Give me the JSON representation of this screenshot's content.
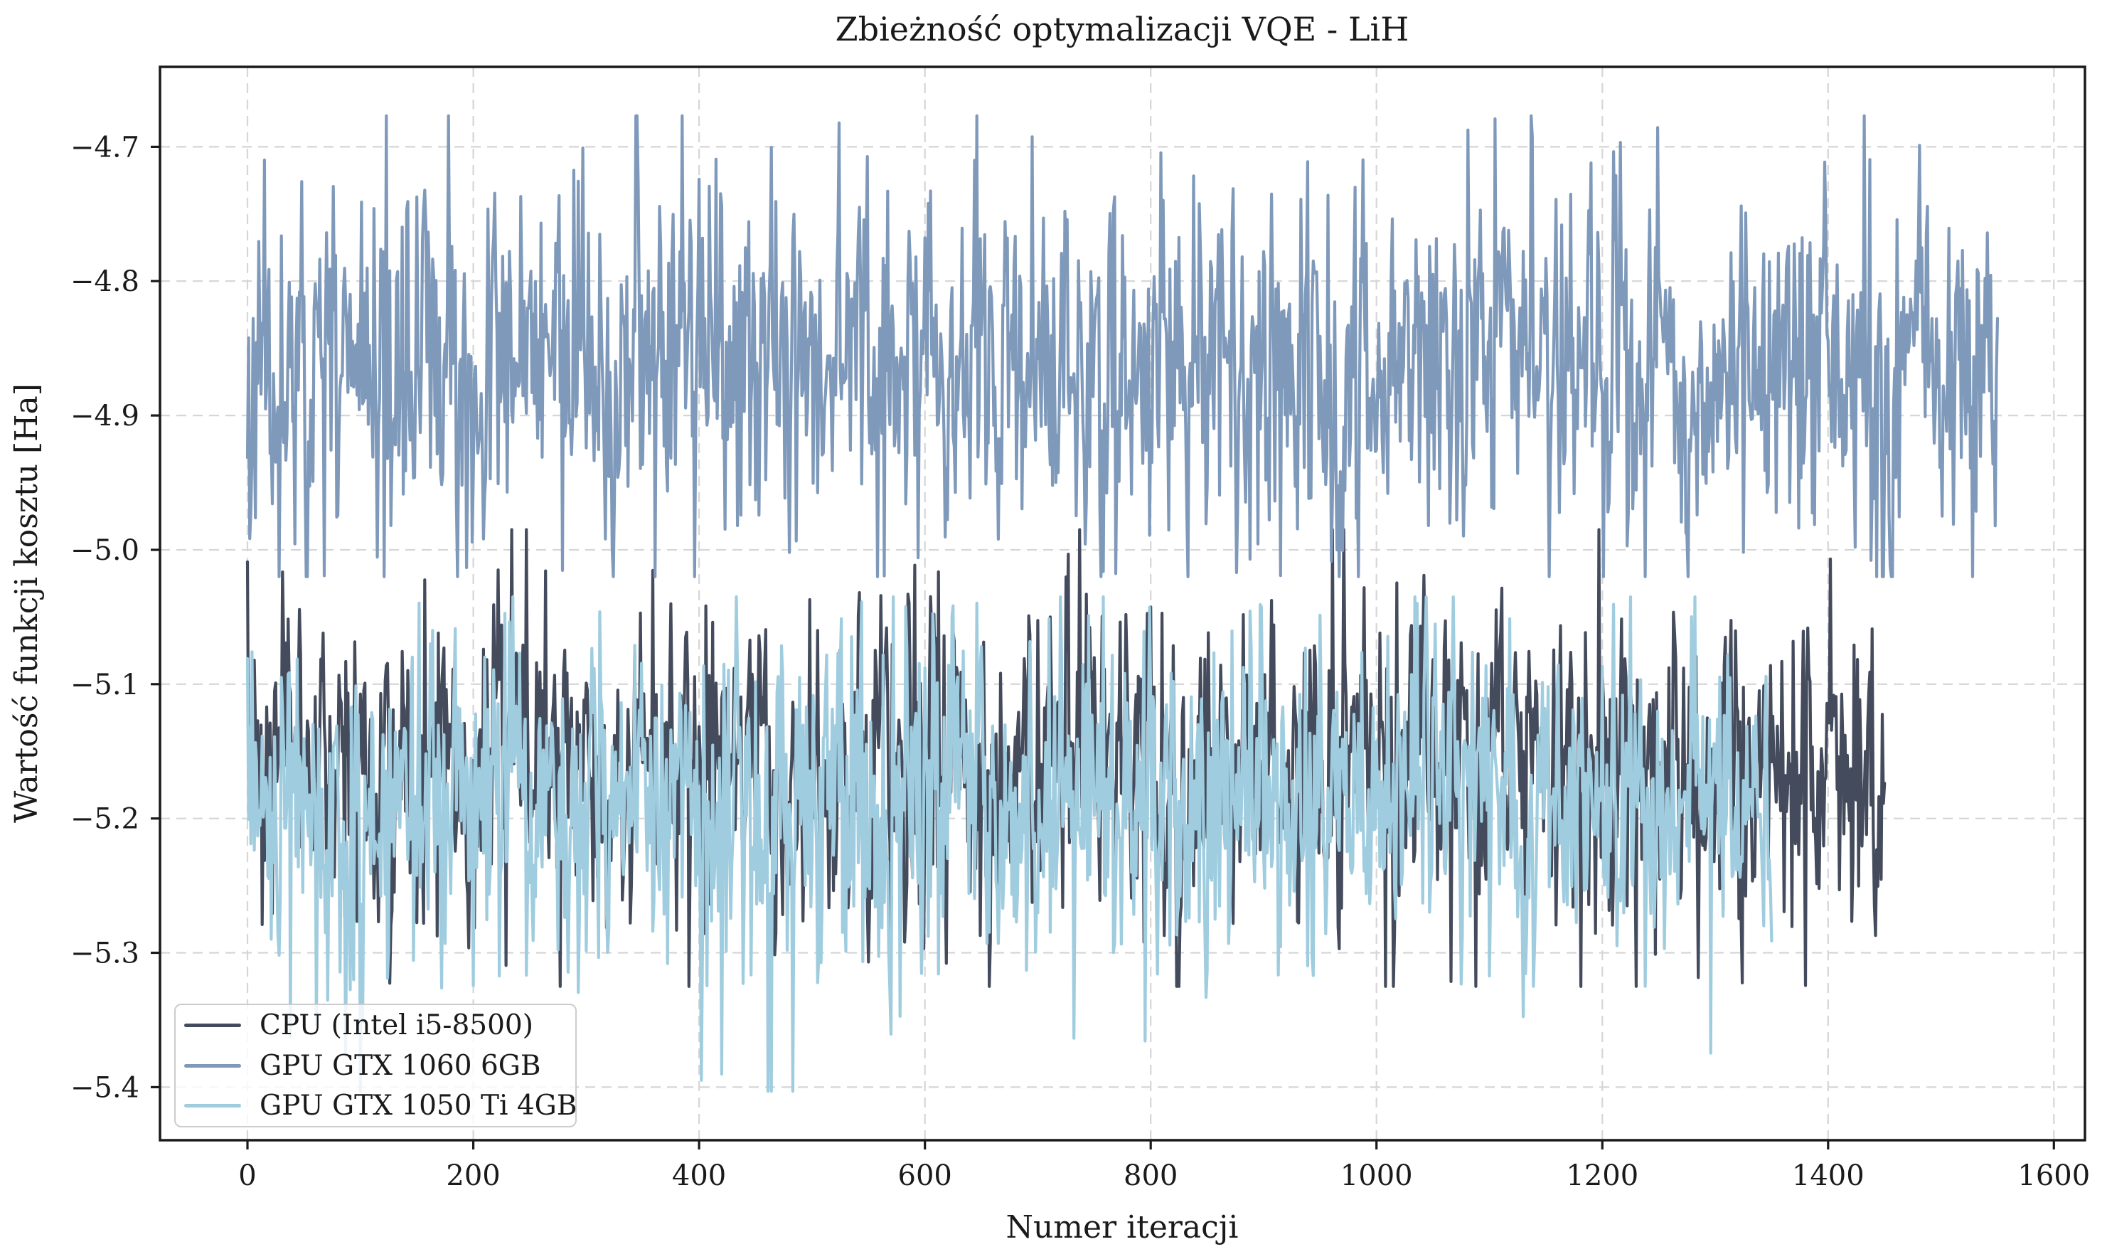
{
  "chart_data": {
    "type": "line",
    "title": "Zbieżność optymalizacji VQE - LiH",
    "xlabel": "Numer iteracji",
    "ylabel": "Wartość funkcji kosztu [Ha]",
    "xlim": [
      -77.5,
      1627.5
    ],
    "ylim": [
      -5.4395,
      -4.6405
    ],
    "xticks": [
      0,
      200,
      400,
      600,
      800,
      1000,
      1200,
      1400,
      1600
    ],
    "yticks": [
      -5.4,
      -5.3,
      -5.2,
      -5.1,
      -5.0,
      -4.9,
      -4.8,
      -4.7
    ],
    "grid": {
      "visible": true,
      "line_style": "dashed",
      "color": "#d6d6d6"
    },
    "legend": {
      "position": "lower-left",
      "border_color": "#cccccc",
      "background": "rgba(255,255,255,0.8)"
    },
    "axis_color": "#1a1a1a",
    "background_color": "#ffffff",
    "series": [
      {
        "name": "CPU (Intel i5-8500)",
        "color": "#434b5c",
        "n_points": 1450,
        "x_start": 0,
        "x_step": 1,
        "mean": -5.158,
        "noise_std": 0.054,
        "ar": 0.25,
        "spike_prob": 0.07,
        "spike_mult": 1.85,
        "y_min": -5.325,
        "y_max": -4.985,
        "seed": 7
      },
      {
        "name": "GPU GTX 1060 6GB",
        "color": "#7e99ba",
        "n_points": 1550,
        "x_start": 0,
        "x_step": 1,
        "mean": -4.862,
        "noise_std": 0.061,
        "ar": 0.25,
        "spike_prob": 0.07,
        "spike_mult": 1.85,
        "y_min": -5.02,
        "y_max": -4.677,
        "seed": 11
      },
      {
        "name": "GPU GTX 1050 Ti 4GB",
        "color": "#9fccde",
        "n_points": 1350,
        "x_start": 0,
        "x_step": 1,
        "mean": -5.19,
        "noise_std": 0.055,
        "ar": 0.25,
        "spike_prob": 0.08,
        "spike_mult": 2.0,
        "y_min": -5.403,
        "y_max": -5.035,
        "seed": 23
      }
    ]
  }
}
